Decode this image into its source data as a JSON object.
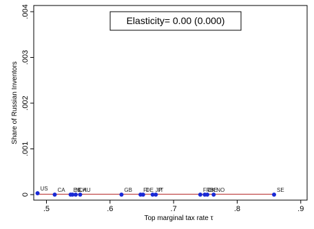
{
  "chart_data": {
    "type": "scatter",
    "xlabel": "Top marginal tax rate τ",
    "ylabel": "Share of Russian Inventors",
    "xlim": [
      0.48,
      0.91
    ],
    "ylim": [
      0,
      0.004
    ],
    "xticks": [
      ".5",
      ".6",
      ".7",
      ".8",
      ".9"
    ],
    "xtick_values": [
      0.5,
      0.6,
      0.7,
      0.8,
      0.9
    ],
    "yticks": [
      "0",
      ".001",
      ".002",
      ".003",
      ".004"
    ],
    "ytick_values": [
      0,
      0.001,
      0.002,
      0.003,
      0.004
    ],
    "annotation": "Elasticity= 0.00 (0.000)",
    "grid": false,
    "points": [
      {
        "label": "US",
        "x": 0.486,
        "y": 3e-05
      },
      {
        "label": "CA",
        "x": 0.513,
        "y": 0.0
      },
      {
        "label": "ES",
        "x": 0.538,
        "y": 0.0
      },
      {
        "label": "NL",
        "x": 0.541,
        "y": 0.0
      },
      {
        "label": "CH",
        "x": 0.546,
        "y": 0.0
      },
      {
        "label": "AU",
        "x": 0.553,
        "y": 0.0
      },
      {
        "label": "GB",
        "x": 0.618,
        "y": 0.0
      },
      {
        "label": "FI",
        "x": 0.648,
        "y": 0.0
      },
      {
        "label": "DE",
        "x": 0.652,
        "y": 0.0
      },
      {
        "label": "JP",
        "x": 0.667,
        "y": 0.0
      },
      {
        "label": "IT",
        "x": 0.672,
        "y": 0.0
      },
      {
        "label": "FR",
        "x": 0.742,
        "y": 0.0
      },
      {
        "label": "DK",
        "x": 0.749,
        "y": 0.0
      },
      {
        "label": "BE",
        "x": 0.753,
        "y": 0.0
      },
      {
        "label": "NO",
        "x": 0.763,
        "y": 0.0
      },
      {
        "label": "SE",
        "x": 0.858,
        "y": 0.0
      }
    ],
    "fit_line": {
      "x": [
        0.486,
        0.858
      ],
      "y": [
        1e-05,
        1e-05
      ]
    },
    "colors": {
      "points": "#1a2ad6",
      "fit_line": "#b22222"
    }
  }
}
